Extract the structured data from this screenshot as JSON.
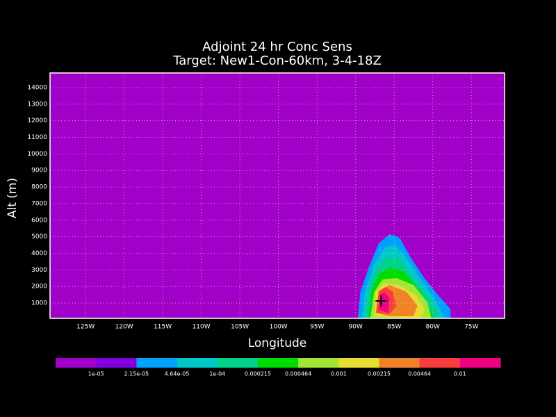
{
  "chart_data": {
    "type": "contour",
    "title": "Adjoint 24 hr Conc Sens",
    "subtitle": "Target: New1-Con-60km, 3-4-18Z",
    "x_label": "Longitude",
    "y_label": "Alt (m)",
    "xlim": [
      -129.6,
      -70.7
    ],
    "ylim": [
      80,
      14880
    ],
    "xticks": [
      {
        "value": -125,
        "label": "125W"
      },
      {
        "value": -120,
        "label": "120W"
      },
      {
        "value": -115,
        "label": "115W"
      },
      {
        "value": -110,
        "label": "110W"
      },
      {
        "value": -105,
        "label": "105W"
      },
      {
        "value": -100,
        "label": "100W"
      },
      {
        "value": -95,
        "label": "95W"
      },
      {
        "value": -90,
        "label": "90W"
      },
      {
        "value": -85,
        "label": "85W"
      },
      {
        "value": -80,
        "label": "80W"
      },
      {
        "value": -75,
        "label": "75W"
      }
    ],
    "yticks": [
      1000,
      2000,
      3000,
      4000,
      5000,
      6000,
      7000,
      8000,
      9000,
      10000,
      11000,
      12000,
      13000,
      14000
    ],
    "grid": true,
    "colors": [
      "#a000c8",
      "#8200dc",
      "#00a0ff",
      "#00c8c8",
      "#00d28c",
      "#00dc00",
      "#a0e632",
      "#e6dc32",
      "#f08228",
      "#fa3c3c",
      "#f00082"
    ],
    "levels": [
      {
        "value": 1e-05,
        "label": "1e-05"
      },
      {
        "value": 2.15e-05,
        "label": "2.15e-05"
      },
      {
        "value": 4.64e-05,
        "label": "4.64e-05"
      },
      {
        "value": 0.0001,
        "label": "1e-04"
      },
      0.000215,
      0.000464,
      0.001,
      0.00215,
      0.00464,
      0.01
    ],
    "regions": [
      {
        "level": 2,
        "lon": [
          -89.7,
          -89.4,
          -88.3,
          -87.0,
          -85.6,
          -84.3,
          -82.9,
          -81.1,
          -79.3,
          -77.7,
          -77.7
        ],
        "alt": [
          80,
          1673,
          3141,
          4608,
          5154,
          4944,
          3770,
          2512,
          1464,
          625,
          80
        ]
      },
      {
        "level": 3,
        "lon": [
          -89.2,
          -88.8,
          -87.6,
          -86.1,
          -84.9,
          -83.8,
          -82.0,
          -79.8,
          -78.4
        ],
        "alt": [
          80,
          1673,
          3351,
          4399,
          4525,
          3980,
          2722,
          1254,
          80
        ]
      },
      {
        "level": 4,
        "lon": [
          -88.8,
          -88.3,
          -87.4,
          -86.1,
          -84.3,
          -82.5,
          -80.2,
          -79.2
        ],
        "alt": [
          80,
          1673,
          2931,
          3770,
          3686,
          2512,
          1254,
          80
        ]
      },
      {
        "level": 5,
        "lon": [
          -88.3,
          -87.9,
          -87.0,
          -85.6,
          -83.8,
          -81.6,
          -79.8
        ],
        "alt": [
          80,
          1883,
          2722,
          3141,
          2931,
          1673,
          80
        ]
      },
      {
        "level": 6,
        "lon": [
          -88.1,
          -87.6,
          -86.5,
          -84.7,
          -82.5,
          -80.7,
          -80.2
        ],
        "alt": [
          80,
          1673,
          2428,
          2512,
          2093,
          1044,
          80
        ]
      },
      {
        "level": 7,
        "lon": [
          -87.6,
          -87.4,
          -86.4,
          -84.3,
          -82.2,
          -81.0,
          -81.6
        ],
        "alt": [
          206,
          1673,
          2177,
          2093,
          1464,
          625,
          80
        ]
      },
      {
        "level": 8,
        "lon": [
          -87.4,
          -87.0,
          -85.6,
          -83.4,
          -82.0,
          -82.5,
          -85.6
        ],
        "alt": [
          415,
          1757,
          2093,
          1673,
          835,
          206,
          206
        ]
      },
      {
        "level": 9,
        "lon": [
          -87.3,
          -87.0,
          -86.1,
          -85.2,
          -84.7,
          -85.6
        ],
        "alt": [
          415,
          1673,
          1967,
          1673,
          835,
          332
        ]
      },
      {
        "level": 10,
        "lon": [
          -87.0,
          -86.8,
          -86.3,
          -85.6,
          -85.8
        ],
        "alt": [
          625,
          1464,
          1673,
          1254,
          415
        ]
      }
    ],
    "target": {
      "lon": -86.7,
      "alt": 1128
    }
  }
}
